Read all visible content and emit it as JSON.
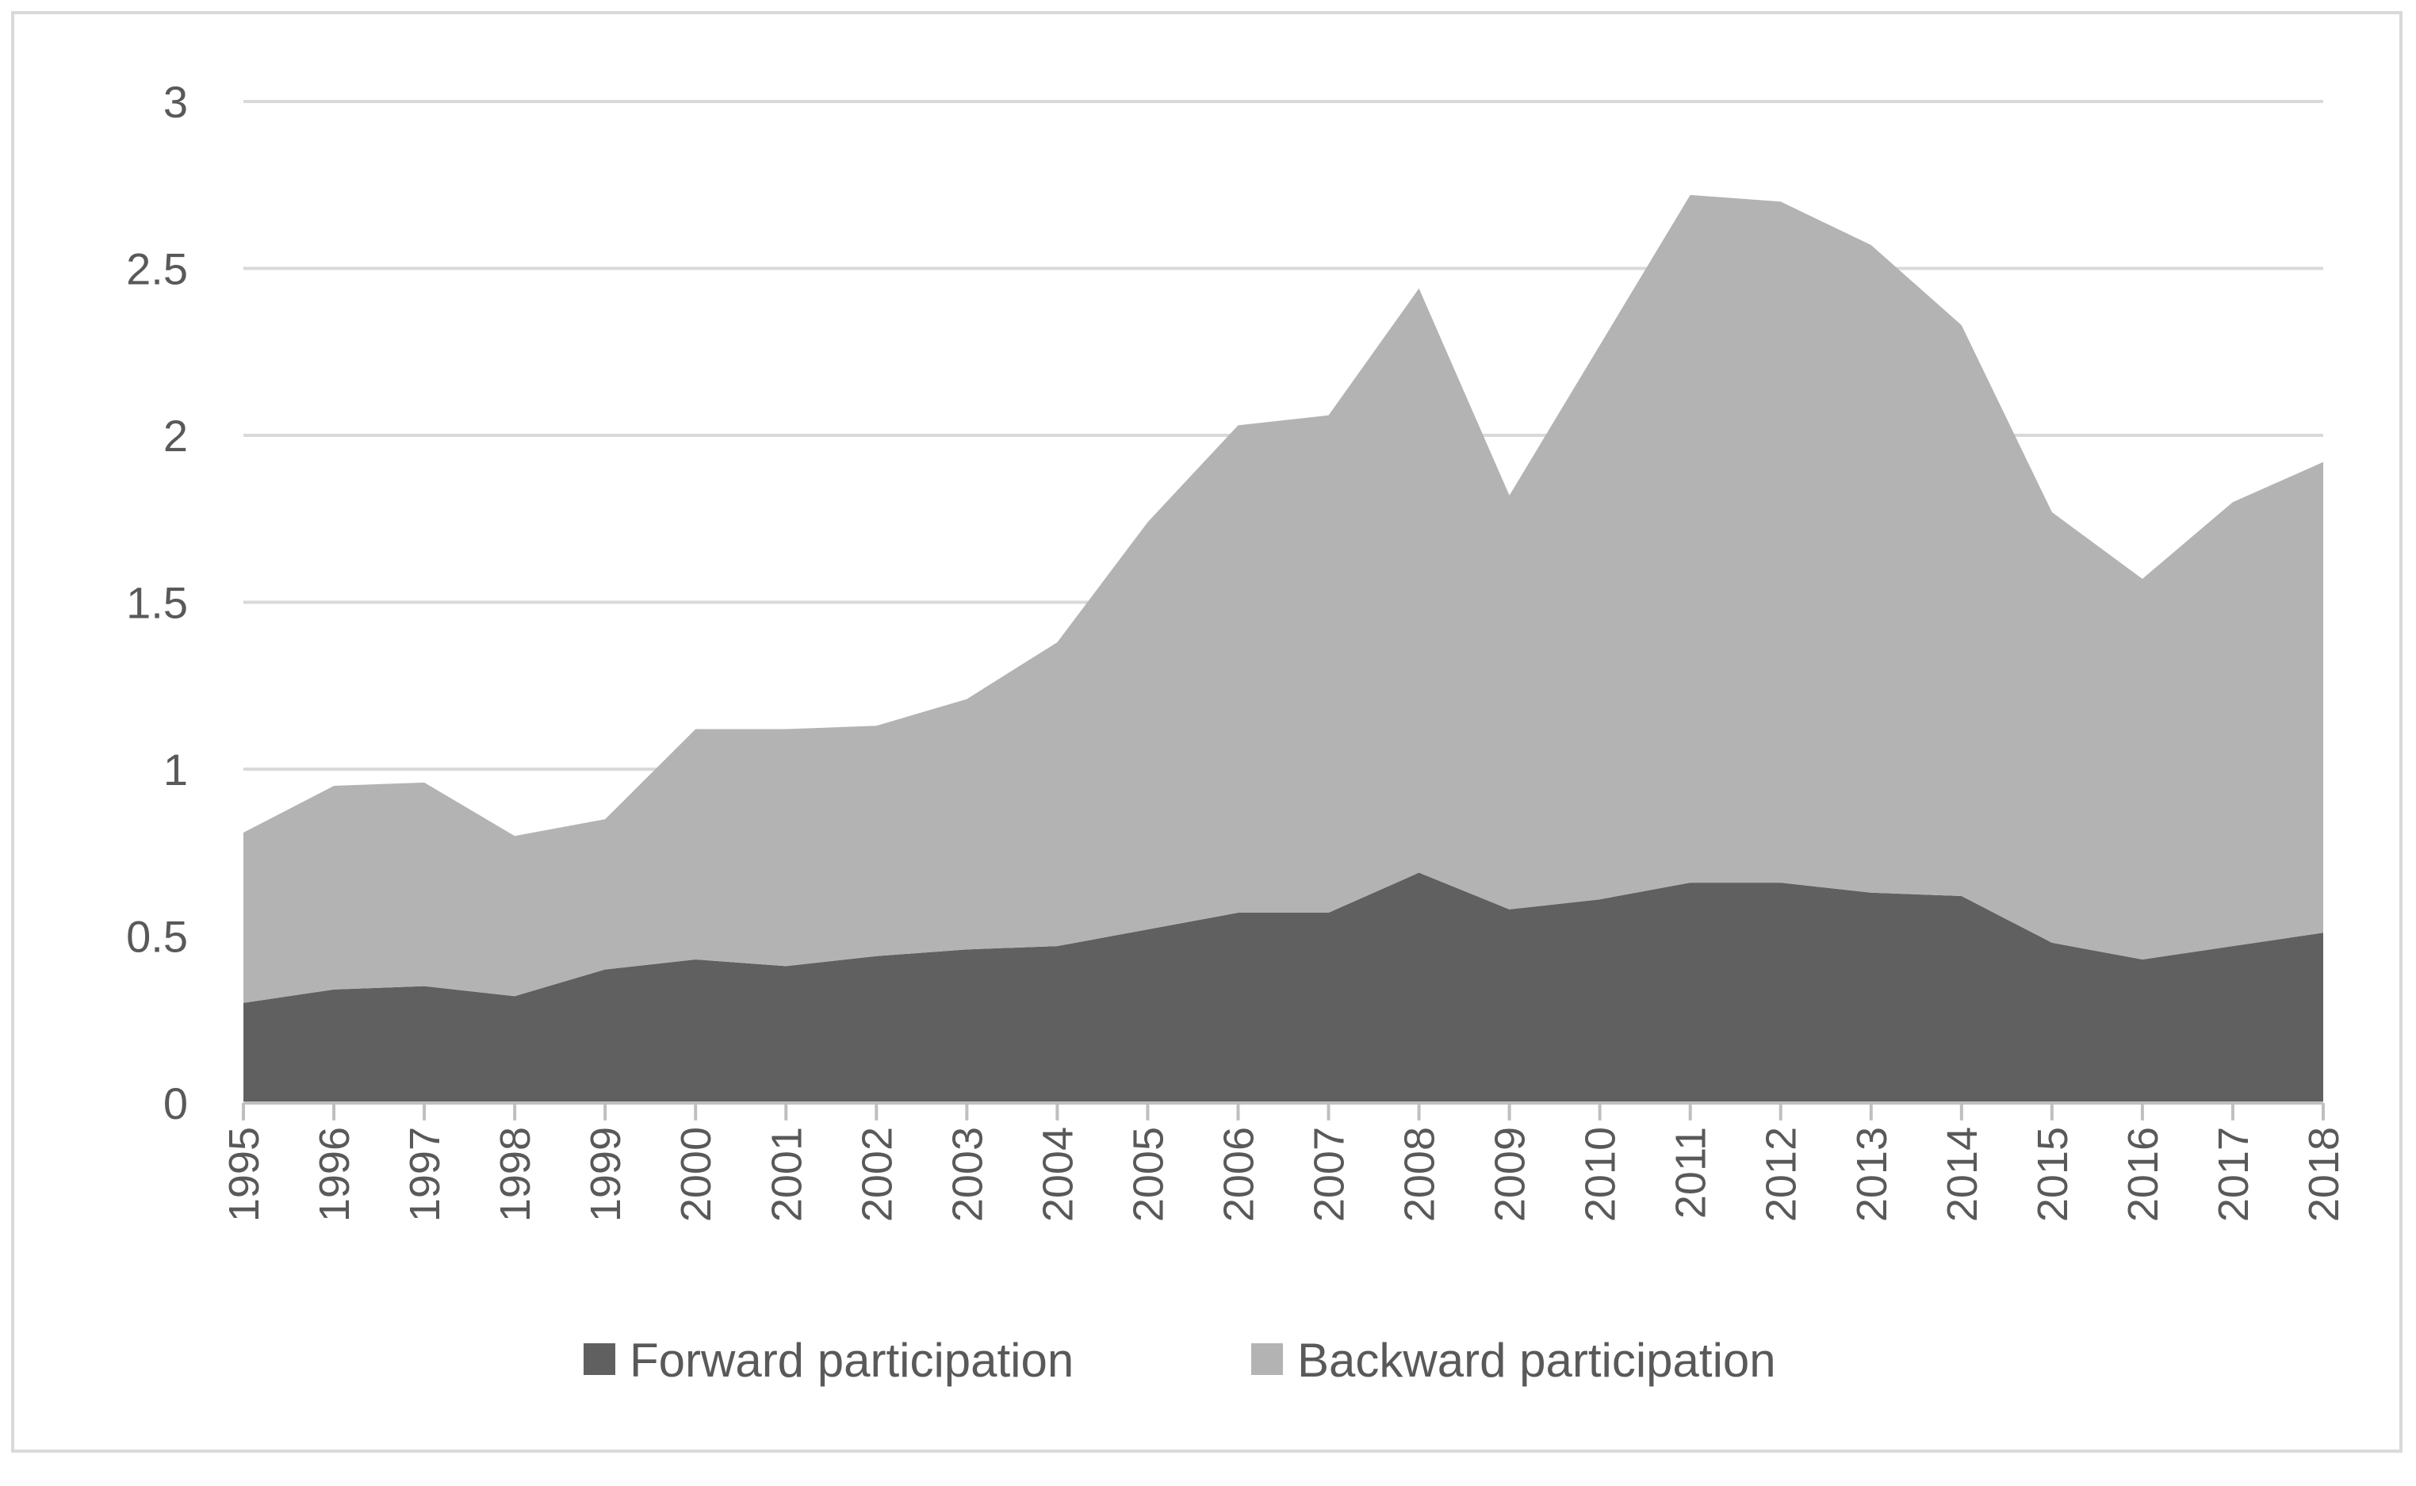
{
  "chart_data": {
    "type": "area",
    "stacked": true,
    "title": "",
    "xlabel": "",
    "ylabel": "",
    "ylim": [
      0,
      3
    ],
    "yticks": [
      "0",
      "0.5",
      "1",
      "1.5",
      "2",
      "2.5",
      "3"
    ],
    "grid": true,
    "legend_position": "bottom",
    "categories": [
      "1995",
      "1996",
      "1997",
      "1998",
      "1999",
      "2000",
      "2001",
      "2002",
      "2003",
      "2004",
      "2005",
      "2006",
      "2007",
      "2008",
      "2009",
      "2010",
      "2011",
      "2012",
      "2013",
      "2014",
      "2015",
      "2016",
      "2017",
      "2018"
    ],
    "series": [
      {
        "name": "Forward participation",
        "color": "#606060",
        "values": [
          0.3,
          0.34,
          0.35,
          0.32,
          0.4,
          0.43,
          0.41,
          0.44,
          0.46,
          0.47,
          0.52,
          0.57,
          0.57,
          0.69,
          0.58,
          0.61,
          0.66,
          0.66,
          0.63,
          0.62,
          0.48,
          0.43,
          0.47,
          0.51
        ]
      },
      {
        "name": "Backward participation",
        "color": "#b3b3b3",
        "values": [
          0.51,
          0.61,
          0.61,
          0.48,
          0.45,
          0.69,
          0.71,
          0.69,
          0.75,
          0.91,
          1.22,
          1.46,
          1.49,
          1.75,
          1.24,
          1.66,
          2.06,
          2.04,
          1.94,
          1.71,
          1.29,
          1.14,
          1.33,
          1.41
        ]
      }
    ]
  }
}
